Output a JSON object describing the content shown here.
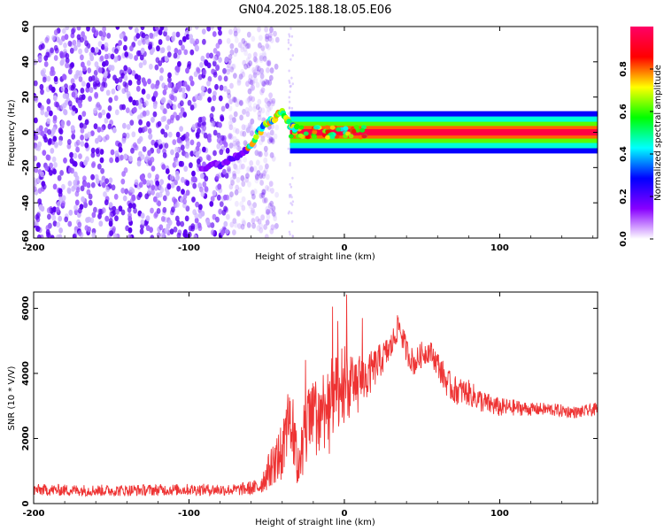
{
  "title": "GN04.2025.188.18.05.E06",
  "chart_data": [
    {
      "type": "heatmap",
      "name": "spectrogram",
      "xlabel": "Height of straight line (km)",
      "ylabel": "Frequency (Hz)",
      "xlim": [
        -200,
        163
      ],
      "ylim": [
        -60,
        60
      ],
      "xticks": [
        -200,
        -100,
        0,
        100
      ],
      "yticks": [
        -60,
        -40,
        -20,
        0,
        20,
        40,
        60
      ],
      "colorbar": {
        "label": "Normalized spectral amplitude",
        "ticks": [
          "0.0",
          "0.2",
          "0.4",
          "0.6",
          "0.8"
        ],
        "range": [
          0,
          1
        ],
        "colors": [
          "#ffffff",
          "#8800ff",
          "#0000ff",
          "#00ffff",
          "#00ff00",
          "#ffff00",
          "#ff0000",
          "#ff0066"
        ]
      },
      "features": {
        "noise_region_x": [
          -200,
          -55
        ],
        "noise_amplitude": 0.15,
        "transition_points": [
          {
            "x": -92,
            "y": -20
          },
          {
            "x": -80,
            "y": -18
          },
          {
            "x": -70,
            "y": -14
          },
          {
            "x": -62,
            "y": -10
          },
          {
            "x": -55,
            "y": 0
          },
          {
            "x": -50,
            "y": 5
          },
          {
            "x": -45,
            "y": 8
          },
          {
            "x": -40,
            "y": 12
          },
          {
            "x": -35,
            "y": 4
          },
          {
            "x": -30,
            "y": 2
          }
        ],
        "carrier_x": [
          -35,
          163
        ],
        "carrier_y": 0
      },
      "grid": false
    },
    {
      "type": "line",
      "name": "snr",
      "xlabel": "Height of straight line (km)",
      "ylabel": "SNR (10 * V/V)",
      "xlim": [
        -200,
        163
      ],
      "ylim": [
        0,
        6500
      ],
      "xticks": [
        -200,
        -100,
        0,
        100
      ],
      "yticks": [
        0,
        2000,
        4000,
        6000
      ],
      "color": "#ee3333",
      "x": [
        -200,
        -150,
        -100,
        -70,
        -55,
        -50,
        -45,
        -40,
        -36,
        -33,
        -30,
        -25,
        -20,
        -15,
        -10,
        -5,
        0,
        5,
        10,
        15,
        20,
        25,
        30,
        35,
        40,
        45,
        50,
        55,
        60,
        65,
        70,
        80,
        90,
        100,
        110,
        120,
        130,
        140,
        150,
        163
      ],
      "series": [
        {
          "values": [
            420,
            400,
            430,
            420,
            500,
            900,
            1300,
            1600,
            2600,
            2000,
            1200,
            2300,
            2600,
            2800,
            3200,
            3300,
            3300,
            3700,
            3800,
            3900,
            4200,
            4500,
            4800,
            5500,
            4700,
            4300,
            4600,
            4700,
            4300,
            3800,
            3500,
            3400,
            3100,
            2950,
            2950,
            2900,
            2900,
            2850,
            2800,
            2900
          ],
          "noise": [
            180,
            180,
            180,
            180,
            250,
            500,
            700,
            900,
            900,
            900,
            800,
            1200,
            1200,
            1300,
            1300,
            1200,
            1000,
            900,
            800,
            700,
            600,
            500,
            450,
            400,
            400,
            400,
            400,
            350,
            400,
            450,
            450,
            400,
            350,
            300,
            250,
            200,
            200,
            200,
            180,
            200
          ]
        }
      ],
      "grid": false
    }
  ]
}
